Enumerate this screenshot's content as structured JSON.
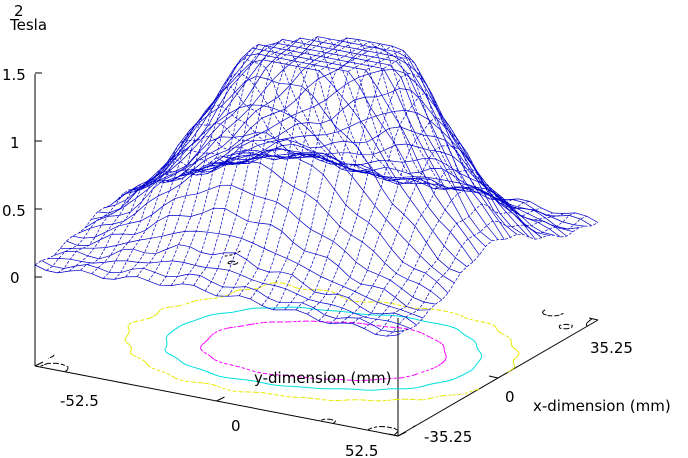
{
  "chart_data": {
    "type": "surface",
    "title": "",
    "zlabel_lines": [
      "2",
      "Tesla"
    ],
    "xlabel": "x-dimension (mm)",
    "ylabel": "y-dimension (mm)",
    "x_ticks": [
      "35.25",
      "0",
      "-35.25"
    ],
    "y_ticks": [
      "-52.5",
      "0",
      "52.5"
    ],
    "z_ticks": [
      "0",
      "0.5",
      "1",
      "1.5"
    ],
    "xlim": [
      -35.25,
      35.25
    ],
    "ylim": [
      -52.5,
      52.5
    ],
    "zlim": [
      0,
      1.5
    ],
    "surface_color": "#0000c8",
    "baseline_color": "#000000",
    "peaks": [
      {
        "x": -3,
        "y": 4,
        "z": 1.47,
        "sx": 12,
        "sy": 26
      },
      {
        "x": 8,
        "y": 18,
        "z": 0.55,
        "sx": 12,
        "sy": 16
      },
      {
        "x": -14,
        "y": -12,
        "z": 0.38,
        "sx": 10,
        "sy": 18
      },
      {
        "x": 20,
        "y": -26,
        "z": 0.22,
        "sx": 10,
        "sy": 12
      }
    ],
    "contours": [
      {
        "level": 0.05,
        "color": "#000000",
        "dashed": true
      },
      {
        "level": 0.3,
        "color": "#e8e800",
        "dashed": true
      },
      {
        "level": 0.6,
        "color": "#00e0e0",
        "dashed": false
      },
      {
        "level": 1.0,
        "color": "#ff00ff",
        "dashed": true
      }
    ]
  }
}
